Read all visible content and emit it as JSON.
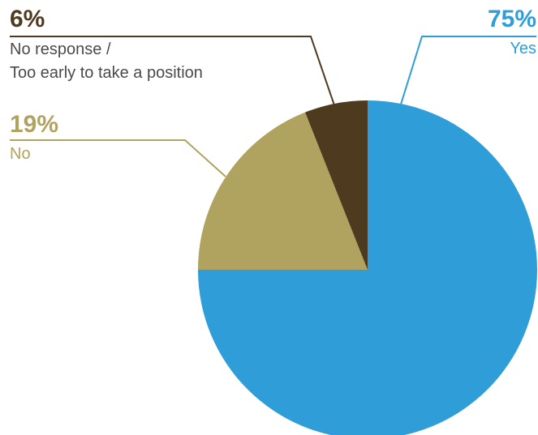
{
  "chart_data": {
    "type": "pie",
    "slices": [
      {
        "label": "Yes",
        "percent_label": "75%",
        "value": 75,
        "color": "#2f9dd8"
      },
      {
        "label": "No",
        "percent_label": "19%",
        "value": 19,
        "color": "#b0a25f"
      },
      {
        "label": "No response / Too early to take a position",
        "label_lines": [
          "No response /",
          "Too early to take a position"
        ],
        "percent_label": "6%",
        "value": 6,
        "color": "#4e3a1e"
      }
    ],
    "start_angle": "12 o'clock, clockwise",
    "legend": "callout labels with leader lines"
  }
}
